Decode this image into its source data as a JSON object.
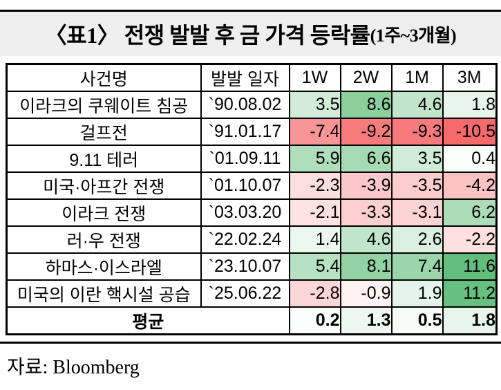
{
  "chart_data": {
    "type": "table",
    "title": "〈표1〉 전쟁 발발 후 금 가격 등락률",
    "title_suffix": "(1주~3개월)",
    "columns": [
      "사건명",
      "발발 일자",
      "1W",
      "2W",
      "1M",
      "3M"
    ],
    "rows": [
      {
        "event": "이라크의 쿠웨이트 침공",
        "date": "`90.08.02",
        "values": [
          3.5,
          8.6,
          4.6,
          1.8
        ]
      },
      {
        "event": "걸프전",
        "date": "`91.01.17",
        "values": [
          -7.4,
          -9.2,
          -9.3,
          -10.5
        ]
      },
      {
        "event": "9.11 테러",
        "date": "`01.09.11",
        "values": [
          5.9,
          6.6,
          3.5,
          0.4
        ]
      },
      {
        "event": "미국·아프간 전쟁",
        "date": "`01.10.07",
        "values": [
          -2.3,
          -3.9,
          -3.5,
          -4.2
        ]
      },
      {
        "event": "이라크 전쟁",
        "date": "`03.03.20",
        "values": [
          -2.1,
          -3.3,
          -3.1,
          6.2
        ]
      },
      {
        "event": "러·우 전쟁",
        "date": "`22.02.24",
        "values": [
          1.4,
          4.6,
          2.6,
          -2.2
        ]
      },
      {
        "event": "하마스·이스라엘",
        "date": "`23.10.07",
        "values": [
          5.4,
          8.1,
          7.4,
          11.6
        ]
      },
      {
        "event": "미국의 이란 핵시설 공습",
        "date": "`25.06.22",
        "values": [
          -2.8,
          -0.9,
          1.9,
          11.2
        ]
      }
    ],
    "average_row": {
      "label": "평균",
      "values": [
        0.2,
        1.3,
        0.5,
        1.8
      ]
    },
    "heatmap": {
      "positive_max": 11.6,
      "negative_min": -10.5,
      "positive_color": "#63BE7B",
      "negative_color": "#F8696B",
      "neutral_color": "#FFFFFF"
    },
    "source": "자료: Bloomberg",
    "colors": {
      "title_band_bg": "#EFEFEF",
      "rule_color": "#000000"
    }
  }
}
